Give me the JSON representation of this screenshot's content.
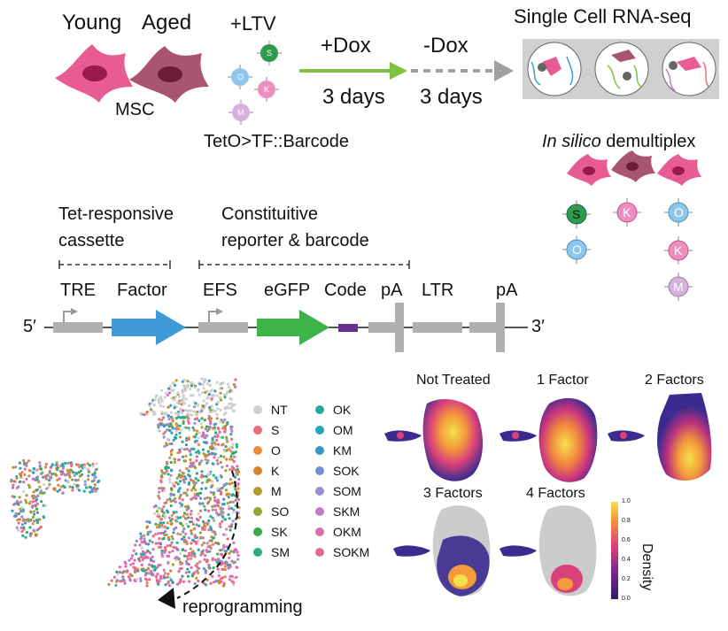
{
  "top": {
    "young_label": "Young",
    "aged_label": "Aged",
    "msc_label": "MSC",
    "ltv_label": "+LTV",
    "tet_label": "TetO>TF::Barcode",
    "dox_on": "+Dox",
    "dox_off": "-Dox",
    "days_1": "3 days",
    "days_2": "3 days",
    "scrna_title": "Single Cell RNA-seq",
    "demux_italic": "In silico",
    "demux_rest": " demultiplex",
    "virus_letters": [
      "S",
      "O",
      "K",
      "M"
    ]
  },
  "construct": {
    "tet_cassette_1": "Tet-responsive",
    "tet_cassette_2": "cassette",
    "reporter_1": "Constituitive",
    "reporter_2": "reporter & barcode",
    "labels": [
      "TRE",
      "Factor",
      "EFS",
      "eGFP",
      "Code",
      "pA",
      "LTR",
      "pA"
    ],
    "five_prime": "5′",
    "three_prime": "3′"
  },
  "demux": {
    "col1": [
      "S",
      "O"
    ],
    "col2": [
      "K"
    ],
    "col3": [
      "O",
      "K",
      "M"
    ]
  },
  "umap": {
    "reprogramming_label": "reprogramming",
    "legend_col1": [
      {
        "label": "NT",
        "color": "#cfcfcf"
      },
      {
        "label": "S",
        "color": "#ec6d77"
      },
      {
        "label": "O",
        "color": "#ef8a3c"
      },
      {
        "label": "K",
        "color": "#d9842a"
      },
      {
        "label": "M",
        "color": "#b39a2a"
      },
      {
        "label": "SO",
        "color": "#95a534"
      },
      {
        "label": "SK",
        "color": "#3ea64b"
      },
      {
        "label": "SM",
        "color": "#2eae7c"
      }
    ],
    "legend_col2": [
      {
        "label": "OK",
        "color": "#24ab9a"
      },
      {
        "label": "OM",
        "color": "#22a8b0"
      },
      {
        "label": "KM",
        "color": "#3c95c9"
      },
      {
        "label": "SOK",
        "color": "#6f90d5"
      },
      {
        "label": "SOM",
        "color": "#9a8fd3"
      },
      {
        "label": "SKM",
        "color": "#c07ec8"
      },
      {
        "label": "OKM",
        "color": "#d86fb3"
      },
      {
        "label": "SOKM",
        "color": "#e8669a"
      }
    ]
  },
  "density": {
    "panels": [
      "Not Treated",
      "1 Factor",
      "2 Factors",
      "3 Factors",
      "4 Factors"
    ],
    "colorbar_label": "Density",
    "colorbar_ticks": [
      "1.0",
      "0.8",
      "0.6",
      "0.4",
      "0.2",
      "0.0"
    ],
    "colors": {
      "low": "#3b2b8f",
      "mid": "#d9417a",
      "high": "#f7e04b"
    }
  },
  "colors": {
    "young_cell": "#e85c93",
    "aged_cell": "#a9556f",
    "nucleus_young": "#9a1a4a",
    "nucleus_aged": "#6a1f36",
    "arrow_green": "#7dc242",
    "arrow_grey": "#a0a0a0",
    "factor_blue": "#3f9bd8",
    "egfp_green": "#3cb449",
    "code_purple": "#6a2e91"
  }
}
